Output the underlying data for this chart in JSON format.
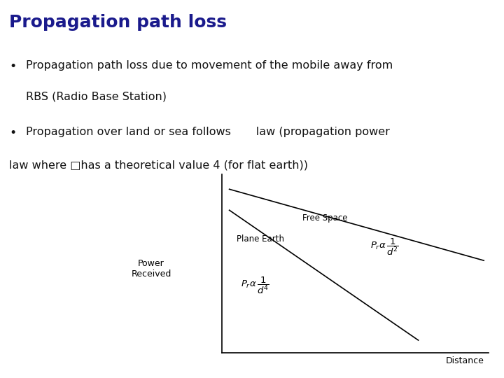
{
  "title": "Propagation path loss",
  "title_color": "#1a1a8c",
  "title_fontsize": 18,
  "separator_color": "#aacdd4",
  "bg_color": "#ffffff",
  "bullet1_line1": "Propagation path loss due to movement of the mobile away from",
  "bullet1_line2": "RBS (Radio Base Station)",
  "bullet2_line1": "Propagation over land or sea follows       law (propagation power",
  "bullet2_line2": "law where □has a theoretical value 4 (for flat earth))",
  "text_color": "#111111",
  "text_fontsize": 11.5,
  "chart_ylabel": "Power\nReceived",
  "chart_xlabel": "Distance",
  "free_space_label": "Free Space",
  "plane_earth_label": "Plane Earth",
  "free_space_formula": "$P_r\\alpha\\,\\dfrac{1}{d^2}$",
  "plane_earth_formula": "$P_r\\alpha\\,\\dfrac{1}{d^4}$"
}
